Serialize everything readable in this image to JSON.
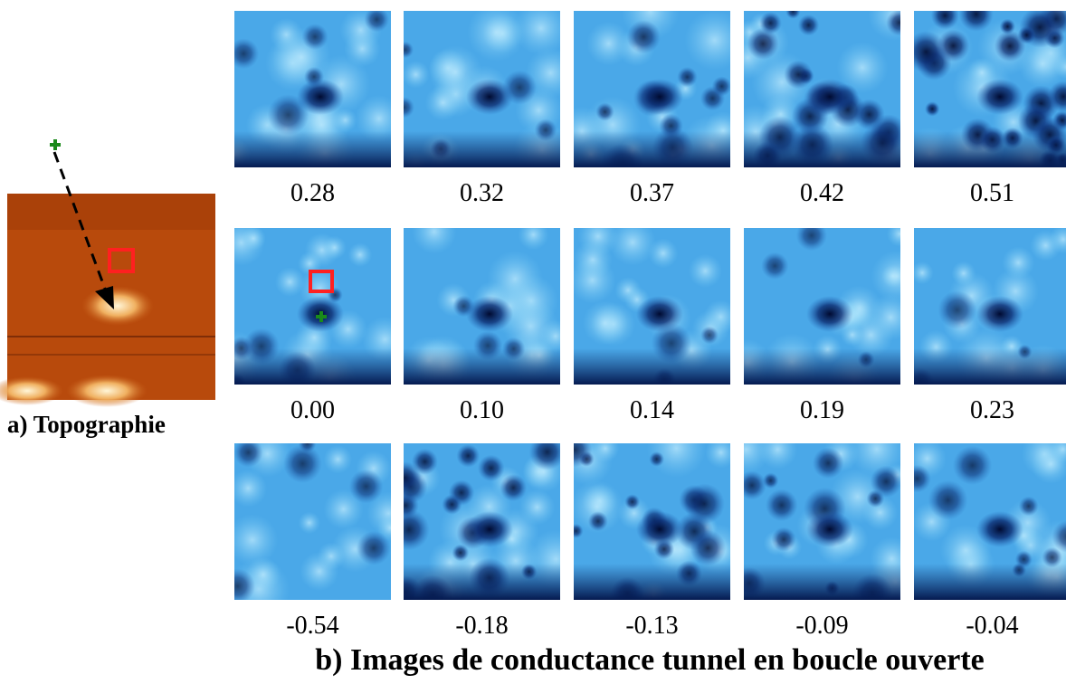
{
  "topography": {
    "caption": "a) Topographie"
  },
  "conductance": {
    "caption": "b) Images de conductance tunnel en boucle ouverte",
    "rows": [
      [
        "0.28",
        "0.32",
        "0.37",
        "0.42",
        "0.51"
      ],
      [
        "0.00",
        "0.10",
        "0.14",
        "0.19",
        "0.23"
      ],
      [
        "-0.54",
        "-0.18",
        "-0.13",
        "-0.09",
        "-0.04"
      ]
    ]
  }
}
